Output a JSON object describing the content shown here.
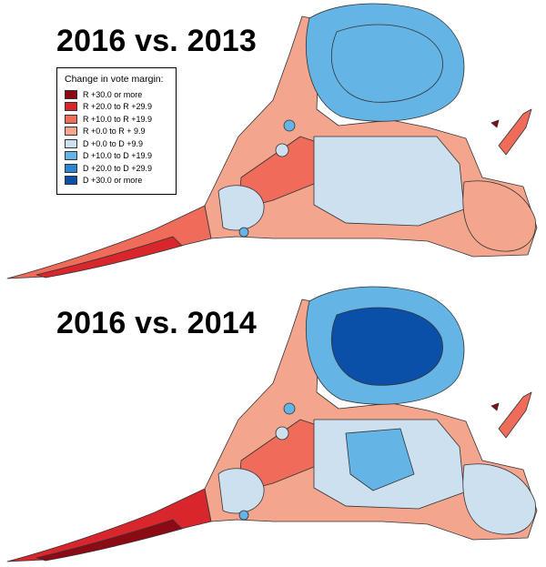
{
  "panels": [
    {
      "title": "2016 vs. 2013"
    },
    {
      "title": "2016 vs. 2014"
    }
  ],
  "legend": {
    "title": "Change in vote margin:",
    "items": [
      {
        "label": "R +30.0 or more",
        "color": "#8b0a14"
      },
      {
        "label": "R +20.0 to R +29.9",
        "color": "#d9262c"
      },
      {
        "label": "R +10.0 to R +19.9",
        "color": "#ef6b5a"
      },
      {
        "label": "R +0.0 to R + 9.9",
        "color": "#f4a58e"
      },
      {
        "label": "D +0.0 to D +9.9",
        "color": "#cde0f0"
      },
      {
        "label": "D +10.0 to D +19.9",
        "color": "#64b4e6"
      },
      {
        "label": "D +20.0 to D +29.9",
        "color": "#2a86d2"
      },
      {
        "label": "D +30.0 or more",
        "color": "#0a50a8"
      }
    ]
  }
}
